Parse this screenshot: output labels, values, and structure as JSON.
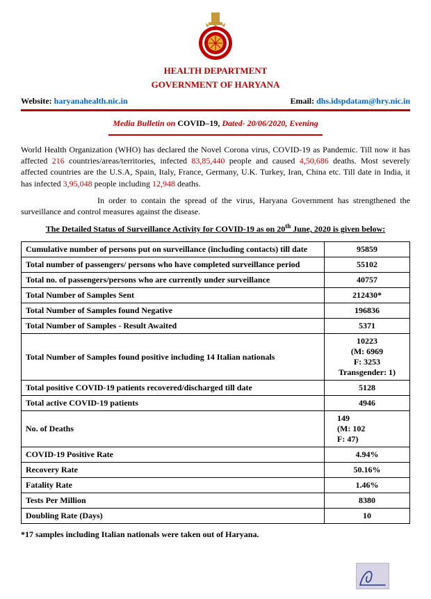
{
  "header": {
    "dept": "HEALTH DEPARTMENT",
    "govt": "GOVERNMENT OF HARYANA",
    "website_label": "Website: ",
    "website_link": "haryanahealth.nic.in",
    "email_label": "Email: ",
    "email_link": "dhs.idspdatam@hry.nic.in",
    "colors": {
      "accent": "#c00000",
      "link": "#0563c1"
    }
  },
  "bulletin": {
    "prefix": "Media Bulletin on ",
    "covid": "COVID–19, ",
    "dated": "Dated- 20/06/2020, Evening"
  },
  "para1": {
    "t1": "World Health Organization (WHO) has declared the Novel Corona virus, COVID-19 as Pandemic. Till now it has affected ",
    "n1": "216",
    "t2": " countries/areas/territories, infected ",
    "n2": "83,85,440",
    "t3": " people and caused ",
    "n3": "4,50,686",
    "t4": " deaths. Most severely affected countries are the U.S.A, Spain, Italy, France, Germany, U.K. Turkey, Iran, China etc. Till date in India, it has infected ",
    "n4": "3,95,048",
    "t5": " people including ",
    "n5": "12,948",
    "t6": " deaths."
  },
  "para2": "In order to contain the spread of the virus, Haryana Government has strengthened the surveillance and control measures against the disease.",
  "status_heading": {
    "before": "The Detailed Status of Surveillance Activity for COVID-19 as on 20",
    "sup": "th",
    "after": " June, 2020 is given below:"
  },
  "table": {
    "rows": [
      {
        "label": "Cumulative number of persons put on surveillance (including contacts) till date",
        "value": "95859"
      },
      {
        "label": "Total number of passengers/ persons who have completed surveillance period",
        "value": "55102"
      },
      {
        "label": "Total no. of passengers/persons who are currently under surveillance",
        "value": "40757"
      },
      {
        "label": "Total Number of Samples Sent",
        "value": "212430*"
      },
      {
        "label": "Total Number of Samples found Negative",
        "value": "196836"
      },
      {
        "label": "Total Number of Samples - Result Awaited",
        "value": "5371"
      },
      {
        "label": "Total Number of Samples found positive including 14 Italian nationals",
        "value_lines": [
          "10223",
          "(M: 6969",
          "F: 3253",
          "Transgender: 1)"
        ]
      },
      {
        "label": "Total positive COVID-19 patients recovered/discharged till date",
        "value": "5128"
      },
      {
        "label": "Total active COVID-19 patients",
        "value": "4946"
      },
      {
        "label": "No. of Deaths",
        "value_lines": [
          "149",
          "(M: 102",
          "F: 47)"
        ],
        "left": true
      },
      {
        "label": "COVID-19 Positive Rate",
        "value": "4.94%"
      },
      {
        "label": "Recovery Rate",
        "value": "50.16%"
      },
      {
        "label": "Fatality Rate",
        "value": "1.46%"
      },
      {
        "label": "Tests Per Million",
        "value": "8380"
      },
      {
        "label": "Doubling Rate (Days)",
        "value": "10"
      }
    ]
  },
  "footnote": "*17 samples including Italian nationals were taken out of Haryana.",
  "emblem": {
    "ashoka_color": "#c49a3a",
    "ring_color": "#c00000",
    "width": 70,
    "height": 78
  },
  "signature": {
    "stroke": "#1a3a8a",
    "bg": "#d8d4e6"
  }
}
